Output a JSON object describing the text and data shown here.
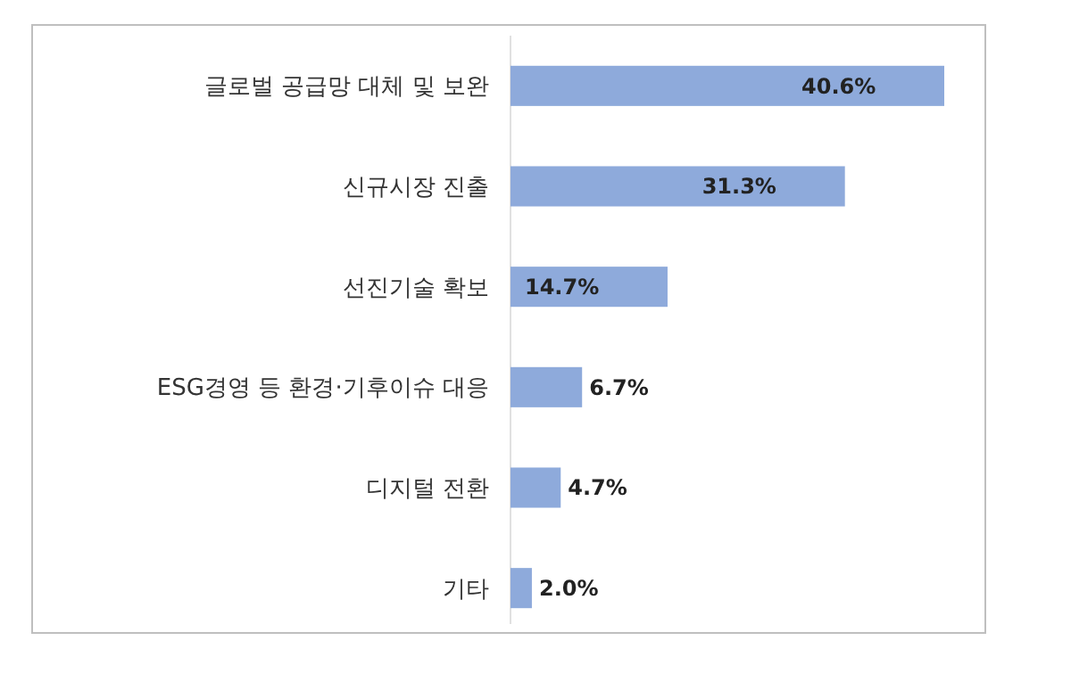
{
  "chart_data": {
    "type": "bar",
    "orientation": "horizontal",
    "categories": [
      "글로벌 공급망 대체 및 보완",
      "신규시장 진출",
      "선진기술 확보",
      "ESG경영 등 환경·기후이슈 대응",
      "디지털 전환",
      "기타"
    ],
    "values": [
      40.6,
      31.3,
      14.7,
      6.7,
      4.7,
      2.0
    ],
    "value_labels": [
      "40.6%",
      "31.3%",
      "14.7%",
      "6.7%",
      "4.7%",
      "2.0%"
    ],
    "color": "#8eaadb"
  }
}
